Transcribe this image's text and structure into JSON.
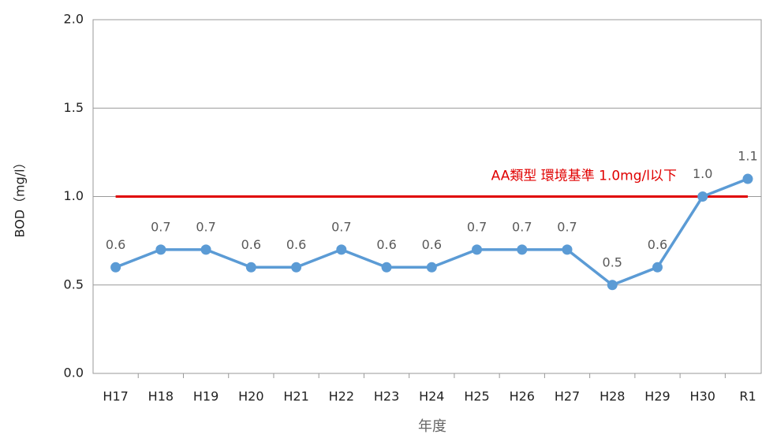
{
  "chart_data": {
    "type": "line",
    "x_label": "年度",
    "y_label": "BOD（mg/l）",
    "categories": [
      "H17",
      "H18",
      "H19",
      "H20",
      "H21",
      "H22",
      "H23",
      "H24",
      "H25",
      "H26",
      "H27",
      "H28",
      "H29",
      "H30",
      "R1"
    ],
    "series": [
      {
        "name": "BOD",
        "color": "#5b9bd5",
        "values": [
          0.6,
          0.7,
          0.7,
          0.6,
          0.6,
          0.7,
          0.6,
          0.6,
          0.7,
          0.7,
          0.7,
          0.5,
          0.6,
          1.0,
          1.1
        ],
        "value_labels": [
          "0.6",
          "0.7",
          "0.7",
          "0.6",
          "0.6",
          "0.7",
          "0.6",
          "0.6",
          "0.7",
          "0.7",
          "0.7",
          "0.5",
          "0.6",
          "1.0",
          "1.1"
        ]
      }
    ],
    "reference_line": {
      "value": 1.0,
      "label": "AA類型  環境基準 1.0mg/l以下",
      "color": "#e00000"
    },
    "ylim": [
      0,
      2
    ],
    "yticks": [
      {
        "value": 0,
        "label": "0.0"
      },
      0.5,
      {
        "value": 1,
        "label": "1.0"
      },
      1.5,
      {
        "value": 2,
        "label": "2.0"
      }
    ],
    "grid": true
  }
}
